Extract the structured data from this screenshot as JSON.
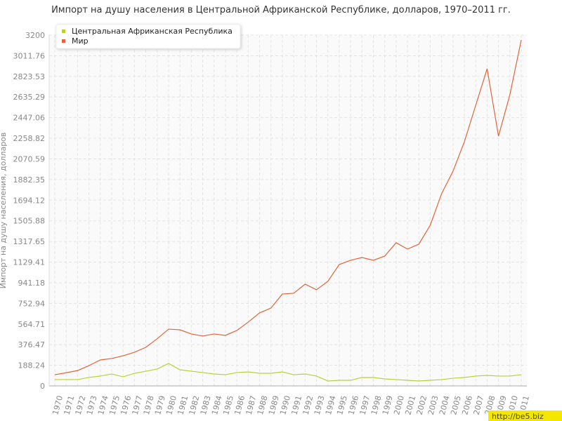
{
  "chart_data": {
    "type": "line",
    "title": "Импорт на душу населения в Центральной Африканской Республике, долларов, 1970–2011 гг.",
    "y_label": "Импорт на душу населения, долларов",
    "watermark": "http://be5.biz",
    "categories": [
      "1970",
      "1971",
      "1972",
      "1973",
      "1974",
      "1975",
      "1976",
      "1977",
      "1978",
      "1979",
      "1980",
      "1981",
      "1982",
      "1983",
      "1984",
      "1985",
      "1986",
      "1987",
      "1988",
      "1989",
      "1990",
      "1991",
      "1992",
      "1993",
      "1994",
      "1995",
      "1996",
      "1997",
      "1998",
      "1999",
      "2000",
      "2001",
      "2002",
      "2003",
      "2004",
      "2005",
      "2006",
      "2007",
      "2008",
      "2009",
      "2010",
      "2011"
    ],
    "series": [
      {
        "name": "Центральная Африканская Республика",
        "color": "#b5d334",
        "values": [
          58,
          58,
          58,
          77,
          90,
          109,
          83,
          115,
          134,
          154,
          205,
          147,
          134,
          122,
          109,
          102,
          122,
          128,
          115,
          115,
          128,
          102,
          109,
          90,
          45,
          51,
          51,
          77,
          77,
          64,
          58,
          51,
          45,
          51,
          58,
          70,
          77,
          90,
          96,
          90,
          90,
          102
        ]
      },
      {
        "name": "Мир",
        "color": "#e0643a",
        "values": [
          102,
          120,
          140,
          185,
          237,
          250,
          275,
          307,
          352,
          430,
          518,
          512,
          474,
          455,
          474,
          461,
          506,
          582,
          666,
          710,
          838,
          845,
          928,
          877,
          954,
          1107,
          1146,
          1171,
          1146,
          1184,
          1306,
          1248,
          1293,
          1466,
          1754,
          1958,
          2227,
          2560,
          2893,
          2278,
          2656,
          3155
        ]
      }
    ],
    "ylim": [
      0,
      3200
    ],
    "yticks": [
      0,
      188.24,
      376.47,
      564.71,
      752.94,
      941.18,
      1129.41,
      1317.65,
      1505.88,
      1694.12,
      1882.35,
      2070.59,
      2258.82,
      2447.06,
      2635.29,
      2823.53,
      3011.76,
      3200
    ],
    "grid": true,
    "legend": "top-left"
  }
}
